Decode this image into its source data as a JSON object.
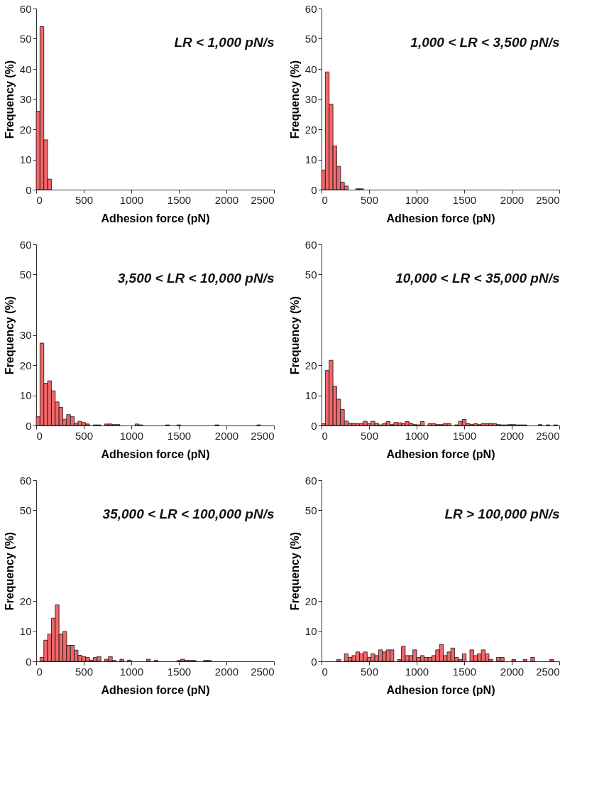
{
  "chart_data": [
    {
      "type": "histogram",
      "title": "LR < 1,000 pN/s",
      "xlabel": "Adhesion force (pN)",
      "ylabel": "Frequency (%)",
      "color": "#f0676a",
      "xlim": [
        0,
        2500
      ],
      "xticks": [
        0,
        500,
        1000,
        1500,
        2000,
        2500
      ],
      "ylim": [
        0,
        60
      ],
      "yticks": [
        0,
        10,
        20,
        30,
        40,
        50,
        60
      ],
      "grid": false,
      "bins": [
        0,
        40,
        80,
        120,
        160
      ],
      "values": [
        26,
        54,
        16.5,
        3.5
      ]
    },
    {
      "type": "histogram",
      "title": "1,000 < LR < 3,500 pN/s",
      "xlabel": "Adhesion force (pN)",
      "ylabel": "Frequency (%)",
      "color": "#f0676a",
      "xlim": [
        0,
        2500
      ],
      "xticks": [
        0,
        500,
        1000,
        1500,
        2000,
        2500
      ],
      "ylim": [
        0,
        60
      ],
      "yticks": [
        0,
        10,
        20,
        30,
        40,
        50,
        60
      ],
      "grid": false,
      "bins": [
        0,
        40,
        80,
        120,
        160,
        200,
        240,
        280,
        320,
        360,
        400,
        440
      ],
      "values": [
        6.5,
        39,
        28.3,
        14.5,
        7.7,
        2.5,
        1.2,
        0,
        0,
        0.3,
        0.3
      ]
    },
    {
      "type": "histogram",
      "title": "3,500 < LR < 10,000 pN/s",
      "xlabel": "Adhesion force (pN)",
      "ylabel": "Frequency (%)",
      "color": "#f0676a",
      "xlim": [
        0,
        2500
      ],
      "xticks": [
        0,
        500,
        1000,
        1500,
        2000,
        2500
      ],
      "ylim": [
        0,
        60
      ],
      "yticks": [
        0,
        10,
        20,
        30,
        50,
        60
      ],
      "grid": false,
      "bins": [
        0,
        40,
        80,
        120,
        160,
        200,
        240,
        280,
        320,
        360,
        400,
        440,
        480,
        520,
        560,
        600,
        640,
        680,
        720,
        760,
        800,
        840,
        880,
        920,
        960,
        1000,
        1040,
        1080,
        1120,
        1160,
        1200,
        1240,
        1280,
        1320,
        1360,
        1400,
        1440,
        1480,
        1520,
        1560,
        1600,
        1640,
        1680,
        1720,
        1760,
        1800,
        1840,
        1880,
        1920,
        1960,
        2000,
        2040,
        2080,
        2120,
        2160,
        2200,
        2240,
        2280,
        2320,
        2360,
        2400,
        2440,
        2480
      ],
      "values": [
        2.9,
        27.3,
        14,
        14.8,
        11.5,
        7.8,
        6,
        2.1,
        3.6,
        2.9,
        0.8,
        1.4,
        1.0,
        0.5,
        0,
        0.2,
        0.2,
        0,
        0.5,
        0.5,
        0.3,
        0.3,
        0,
        0,
        0,
        0,
        0.5,
        0.2,
        0,
        0,
        0,
        0,
        0,
        0,
        0.2,
        0,
        0,
        0.2,
        0,
        0,
        0,
        0,
        0,
        0,
        0,
        0,
        0,
        0.2,
        0,
        0,
        0,
        0,
        0,
        0,
        0,
        0,
        0,
        0,
        0.2,
        0,
        0,
        0
      ]
    },
    {
      "type": "histogram",
      "title": "10,000 < LR < 35,000 pN/s",
      "xlabel": "Adhesion force (pN)",
      "ylabel": "Frequency (%)",
      "color": "#f0676a",
      "xlim": [
        0,
        2500
      ],
      "xticks": [
        0,
        500,
        1000,
        1500,
        2000,
        2500
      ],
      "ylim": [
        0,
        60
      ],
      "yticks": [
        0,
        10,
        20,
        50,
        60
      ],
      "grid": false,
      "bins": [
        0,
        40,
        80,
        120,
        160,
        200,
        240,
        280,
        320,
        360,
        400,
        440,
        480,
        520,
        560,
        600,
        640,
        680,
        720,
        760,
        800,
        840,
        880,
        920,
        960,
        1000,
        1040,
        1080,
        1120,
        1160,
        1200,
        1240,
        1280,
        1320,
        1360,
        1400,
        1440,
        1480,
        1520,
        1560,
        1600,
        1640,
        1680,
        1720,
        1760,
        1800,
        1840,
        1880,
        1920,
        1960,
        2000,
        2040,
        2080,
        2120,
        2160,
        2200,
        2240,
        2280,
        2320,
        2360,
        2400,
        2440,
        2480
      ],
      "values": [
        0.6,
        18.2,
        21.6,
        13,
        8.7,
        5.3,
        1.5,
        0.7,
        0.7,
        0.6,
        0.7,
        1.4,
        0.6,
        1.4,
        0.7,
        0.2,
        0.6,
        1.3,
        0.3,
        1.0,
        0.9,
        0.6,
        1.3,
        0.7,
        0.3,
        0.2,
        1.3,
        0,
        0.6,
        0.6,
        0.3,
        0.3,
        0.6,
        0.6,
        0,
        0.2,
        1.4,
        2.0,
        0.6,
        0.3,
        0.6,
        0.3,
        0.7,
        0.6,
        0.7,
        0.6,
        0.3,
        0.2,
        0.2,
        0.3,
        0.3,
        0.2,
        0.2,
        0.2,
        0,
        0,
        0,
        0.3,
        0,
        0.2,
        0,
        0.2
      ]
    },
    {
      "type": "histogram",
      "title": "35,000 < LR < 100,000 pN/s",
      "xlabel": "Adhesion force (pN)",
      "ylabel": "Frequency (%)",
      "color": "#f0676a",
      "xlim": [
        0,
        2500
      ],
      "xticks": [
        0,
        500,
        1000,
        1500,
        2000,
        2500
      ],
      "ylim": [
        0,
        60
      ],
      "yticks": [
        0,
        10,
        20,
        50,
        60
      ],
      "grid": false,
      "bins": [
        0,
        40,
        80,
        120,
        160,
        200,
        240,
        280,
        320,
        360,
        400,
        440,
        480,
        520,
        560,
        600,
        640,
        680,
        720,
        760,
        800,
        840,
        880,
        920,
        960,
        1000,
        1040,
        1080,
        1120,
        1160,
        1200,
        1240,
        1280,
        1320,
        1360,
        1400,
        1440,
        1480,
        1520,
        1560,
        1600,
        1640,
        1680,
        1720,
        1760,
        1800,
        1840,
        1880,
        1920,
        1960,
        2000,
        2040,
        2080,
        2120,
        2160,
        2200,
        2240,
        2280,
        2320,
        2360,
        2400,
        2440,
        2480
      ],
      "values": [
        0,
        1.3,
        7.0,
        9.0,
        14.3,
        18.7,
        9.0,
        9.9,
        5.3,
        5.3,
        3.7,
        2.0,
        1.6,
        1.3,
        0.4,
        1.3,
        1.6,
        0,
        0.7,
        1.6,
        0.3,
        0,
        0.7,
        0,
        0.4,
        0,
        0,
        0,
        0,
        0.7,
        0,
        0.3,
        0,
        0,
        0,
        0,
        0,
        0.3,
        0.7,
        0.3,
        0.3,
        0.3,
        0,
        0,
        0.3,
        0.3,
        0,
        0,
        0,
        0,
        0,
        0,
        0,
        0,
        0,
        0,
        0,
        0,
        0,
        0,
        0,
        0
      ]
    },
    {
      "type": "histogram",
      "title": "LR > 100,000 pN/s",
      "xlabel": "Adhesion force (pN)",
      "ylabel": "Frequency (%)",
      "color": "#f0676a",
      "xlim": [
        0,
        2500
      ],
      "xticks": [
        0,
        500,
        1000,
        1500,
        2000,
        2500
      ],
      "ylim": [
        0,
        60
      ],
      "yticks": [
        0,
        10,
        20,
        50,
        60
      ],
      "grid": false,
      "bins": [
        0,
        40,
        80,
        120,
        160,
        200,
        240,
        280,
        320,
        360,
        400,
        440,
        480,
        520,
        560,
        600,
        640,
        680,
        720,
        760,
        800,
        840,
        880,
        920,
        960,
        1000,
        1040,
        1080,
        1120,
        1160,
        1200,
        1240,
        1280,
        1320,
        1360,
        1400,
        1440,
        1480,
        1520,
        1560,
        1600,
        1640,
        1680,
        1720,
        1760,
        1800,
        1840,
        1880,
        1920,
        1960,
        2000,
        2040,
        2080,
        2120,
        2160,
        2200,
        2240,
        2280,
        2320,
        2360,
        2400,
        2440,
        2480
      ],
      "values": [
        0,
        0,
        0,
        0,
        0.6,
        0,
        2.5,
        1.3,
        1.9,
        3.1,
        2.5,
        3.1,
        1.3,
        2.5,
        1.9,
        3.8,
        3.1,
        3.8,
        3.8,
        0,
        0.6,
        5.0,
        1.9,
        1.9,
        3.8,
        1.3,
        1.9,
        1.3,
        1.3,
        1.9,
        3.8,
        5.6,
        1.9,
        3.1,
        4.4,
        1.3,
        0.6,
        2.5,
        0,
        3.8,
        1.9,
        2.5,
        3.8,
        2.5,
        0.6,
        0,
        1.3,
        1.3,
        0,
        0,
        0.6,
        0,
        0,
        0.6,
        0,
        1.3,
        0,
        0,
        0,
        0,
        0.6,
        0
      ]
    }
  ]
}
